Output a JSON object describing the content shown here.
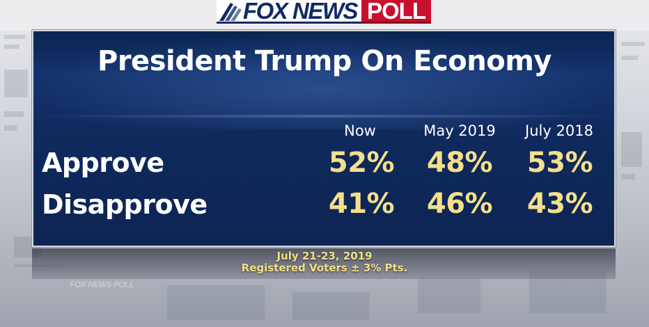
{
  "header": {
    "brand_left": "FOX NEWS",
    "brand_right": "POLL",
    "brand_blue": "#0f2a66",
    "brand_red": "#c8102e"
  },
  "panel": {
    "title": "President Trump On Economy",
    "columns": [
      "Now",
      "May 2019",
      "July 2018"
    ],
    "rows": [
      {
        "label": "Approve",
        "values": [
          "52%",
          "48%",
          "53%"
        ]
      },
      {
        "label": "Disapprove",
        "values": [
          "41%",
          "46%",
          "43%"
        ]
      }
    ],
    "value_color": "#f4e08a",
    "background_color": "#102a5e"
  },
  "footer": {
    "dates": "July 21-23, 2019",
    "sample": "Registered Voters ± 3% Pts."
  },
  "background": {
    "ghost_brand": "FOX NEWS POLL"
  }
}
